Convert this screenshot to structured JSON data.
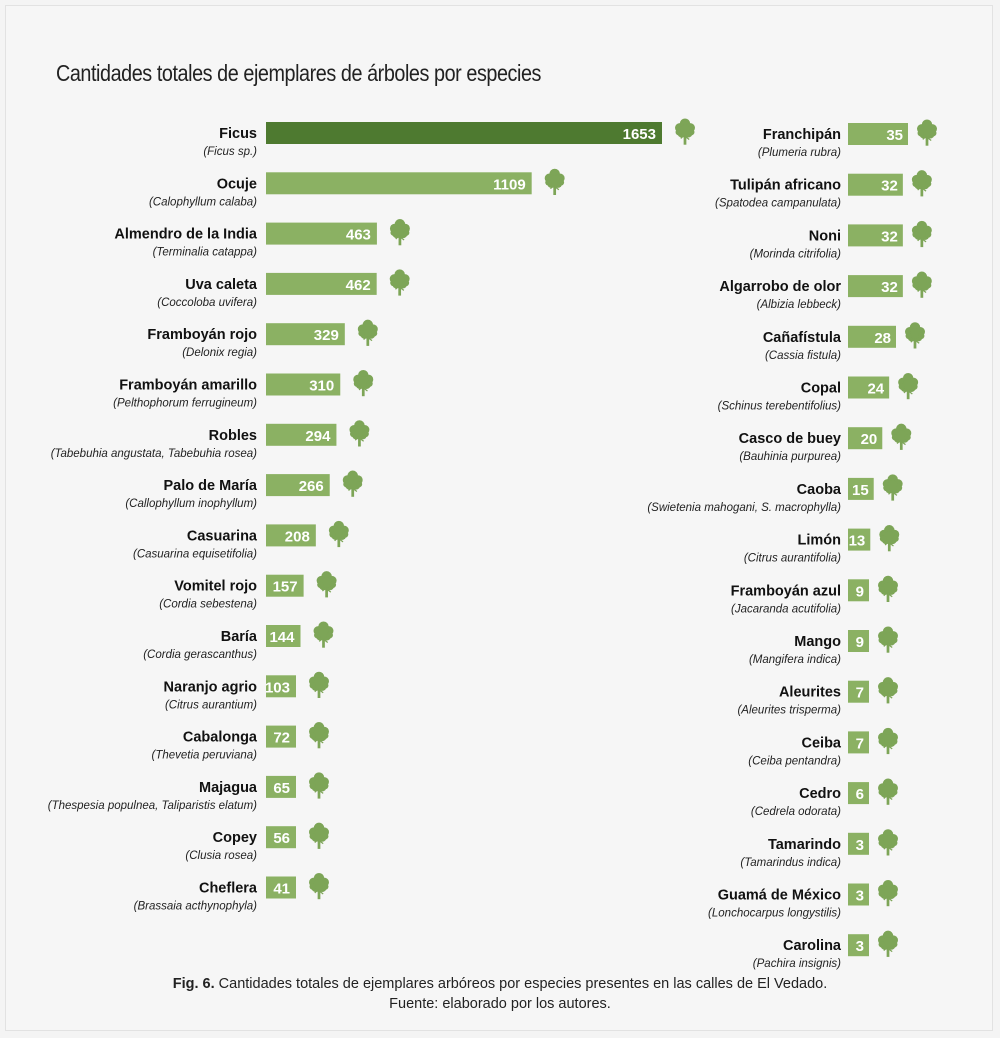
{
  "chart_data": {
    "type": "bar",
    "title": "Cantidades totales de ejemplares  de árboles por especies",
    "icon": "tree-icon",
    "colors": {
      "top": "#4e7a30",
      "bar": "#8bb163",
      "icon": "#7da557"
    },
    "left_column": [
      {
        "name": "Ficus",
        "scientific": "(Ficus sp.)",
        "value": 1653
      },
      {
        "name": "Ocuje",
        "scientific": "(Calophyllum calaba)",
        "value": 1109
      },
      {
        "name": "Almendro de la India",
        "scientific": "(Terminalia catappa)",
        "value": 463
      },
      {
        "name": "Uva caleta",
        "scientific": "(Coccoloba uvifera)",
        "value": 462
      },
      {
        "name": "Framboyán rojo",
        "scientific": "(Delonix regia)",
        "value": 329
      },
      {
        "name": "Framboyán amarillo",
        "scientific": "(Pelthophorum ferrugineum)",
        "value": 310
      },
      {
        "name": "Robles",
        "scientific": "(Tabebuhia angustata, Tabebuhia rosea)",
        "value": 294
      },
      {
        "name": "Palo de María",
        "scientific": "(Callophyllum inophyllum)",
        "value": 266
      },
      {
        "name": "Casuarina",
        "scientific": "(Casuarina equisetifolia)",
        "value": 208
      },
      {
        "name": "Vomitel rojo",
        "scientific": "(Cordia sebestena)",
        "value": 157
      },
      {
        "name": "Baría",
        "scientific": "(Cordia gerascanthus)",
        "value": 144
      },
      {
        "name": "Naranjo agrio",
        "scientific": "(Citrus aurantium)",
        "value": 103
      },
      {
        "name": "Cabalonga",
        "scientific": "(Thevetia peruviana)",
        "value": 72
      },
      {
        "name": "Majagua",
        "scientific": "(Thespesia populnea, Taliparistis elatum)",
        "value": 65
      },
      {
        "name": "Copey",
        "scientific": "(Clusia rosea)",
        "value": 56
      },
      {
        "name": "Cheflera",
        "scientific": "(Brassaia acthynophyla)",
        "value": 41
      }
    ],
    "right_column": [
      {
        "name": "Franchipán",
        "scientific": "(Plumeria rubra)",
        "value": 35
      },
      {
        "name": "Tulipán africano",
        "scientific": "(Spatodea campanulata)",
        "value": 32
      },
      {
        "name": "Noni",
        "scientific": "(Morinda citrifolia)",
        "value": 32
      },
      {
        "name": "Algarrobo de olor",
        "scientific": "(Albizia lebbeck)",
        "value": 32
      },
      {
        "name": "Cañafístula",
        "scientific": "(Cassia fistula)",
        "value": 28
      },
      {
        "name": "Copal",
        "scientific": "(Schinus terebentifolius)",
        "value": 24
      },
      {
        "name": "Casco de buey",
        "scientific": "(Bauhinia purpurea)",
        "value": 20
      },
      {
        "name": "Caoba",
        "scientific": "(Swietenia mahogani, S. macrophylla)",
        "value": 15
      },
      {
        "name": "Limón",
        "scientific": "(Citrus aurantifolia)",
        "value": 13
      },
      {
        "name": "Framboyán azul",
        "scientific": "(Jacaranda acutifolia)",
        "value": 9
      },
      {
        "name": "Mango",
        "scientific": "(Mangifera indica)",
        "value": 9
      },
      {
        "name": "Aleurites",
        "scientific": "(Aleurites trisperma)",
        "value": 7
      },
      {
        "name": "Ceiba",
        "scientific": "(Ceiba pentandra)",
        "value": 7
      },
      {
        "name": "Cedro",
        "scientific": "(Cedrela odorata)",
        "value": 6
      },
      {
        "name": "Tamarindo",
        "scientific": "(Tamarindus indica)",
        "value": 3
      },
      {
        "name": "Guamá de México",
        "scientific": "(Lonchocarpus longystilis)",
        "value": 3
      },
      {
        "name": "Carolina",
        "scientific": "(Pachira insignis)",
        "value": 3
      }
    ]
  },
  "caption": {
    "label": "Fig. 6.",
    "text": " Cantidades totales de ejemplares arbóreos por especies presentes en las calles de El Vedado.",
    "source": "Fuente: elaborado por los autores."
  }
}
